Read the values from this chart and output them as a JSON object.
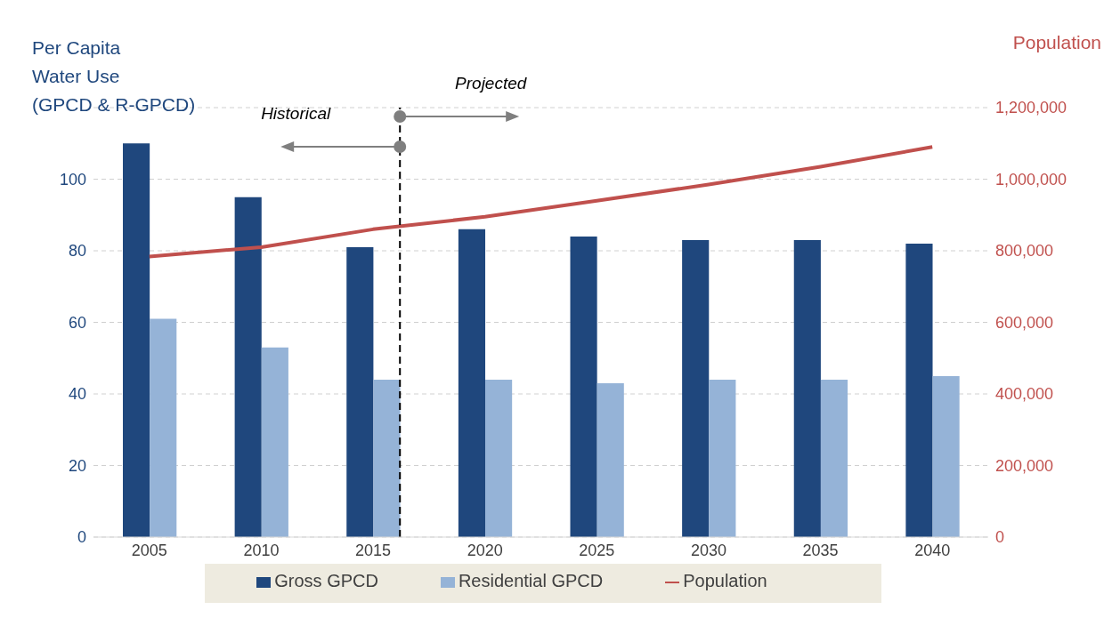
{
  "chart_data": {
    "type": "bar",
    "x": [
      2005,
      2010,
      2015,
      2020,
      2025,
      2030,
      2035,
      2040
    ],
    "xlim": [
      2002.5,
      2042.5
    ],
    "xticks": [
      2005,
      2010,
      2015,
      2020,
      2025,
      2030,
      2035,
      2040
    ],
    "series": [
      {
        "name": "Gross GPCD",
        "color": "#1f477d",
        "values": [
          110,
          95,
          81,
          86,
          84,
          83,
          83,
          82
        ]
      },
      {
        "name": "Residential GPCD",
        "color": "#95b3d7",
        "values": [
          61,
          53,
          44,
          44,
          43,
          44,
          44,
          45
        ]
      },
      {
        "name": "Population",
        "type": "line",
        "axis": "y2",
        "color": "#c0504d",
        "values": [
          784000,
          810000,
          860000,
          895000,
          940000,
          985000,
          1035000,
          1090000
        ]
      }
    ],
    "ylabel": "Per Capita\nWater Use\n(GPCD & R-GPCD)",
    "y2label": "Population",
    "ylim": [
      0,
      120
    ],
    "yticks": [
      0,
      20,
      40,
      60,
      80,
      100,
      {
        "value": 120,
        "label": null
      }
    ],
    "y2lim": [
      0,
      1200000
    ],
    "y2ticks": [
      0,
      {
        "value": 200000,
        "label": "200,000"
      },
      {
        "value": 400000,
        "label": "400,000"
      },
      {
        "value": 600000,
        "label": "600,000"
      },
      {
        "value": 800000,
        "label": "800,000"
      },
      {
        "value": 1000000,
        "label": "1,000,000"
      },
      {
        "value": 1200000,
        "label": "1,200,000"
      }
    ],
    "ref_lines": [
      {
        "axis": "x",
        "value": 2016.2,
        "line_style": "dashed",
        "color": "#000000"
      }
    ],
    "annotations": [
      "Historical",
      "Projected"
    ],
    "grid": "y",
    "legend": "bottom",
    "marker": "none",
    "line_style": "solid"
  }
}
